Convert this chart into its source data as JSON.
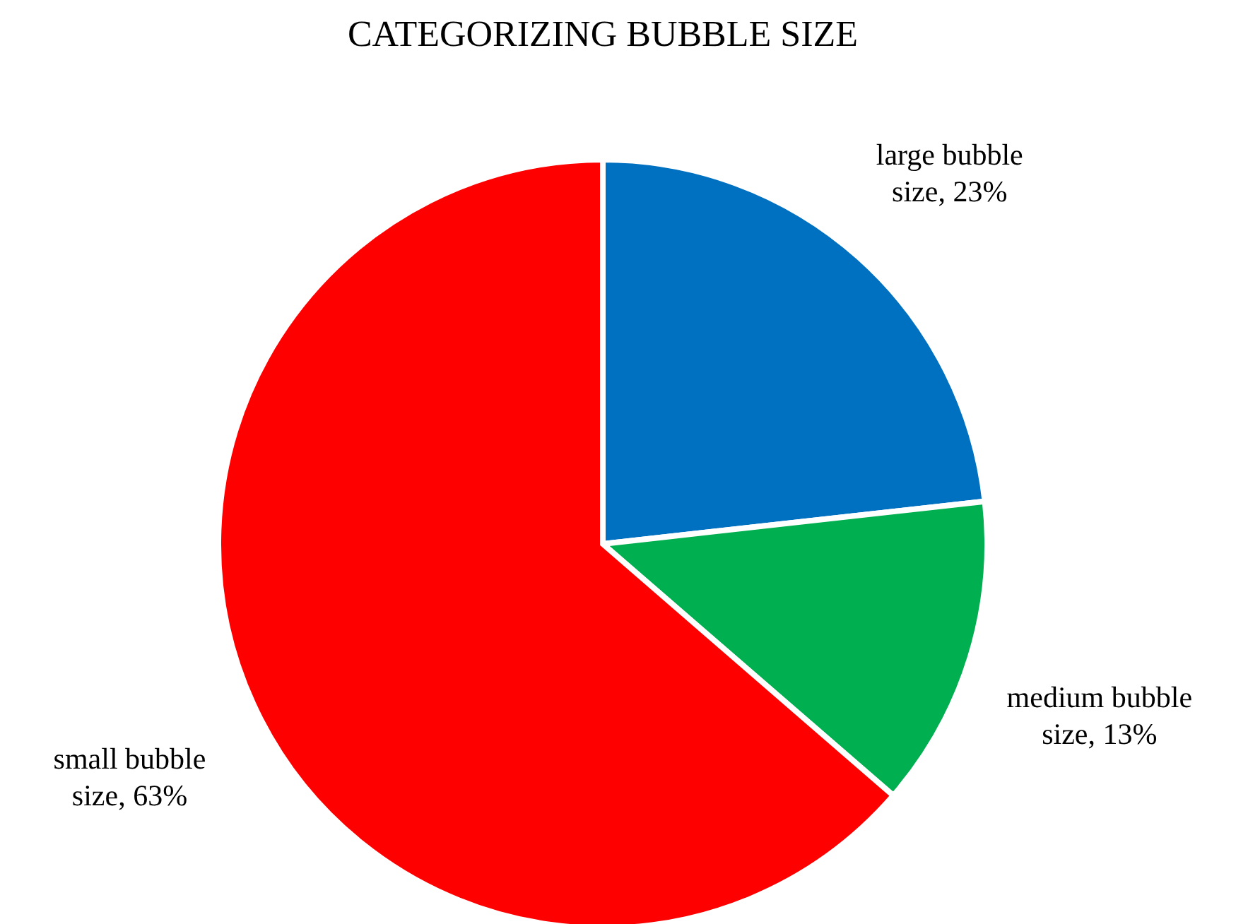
{
  "chart_data": {
    "type": "pie",
    "title": "CATEGORIZING BUBBLE SIZE",
    "categories": [
      "large bubble size",
      "medium bubble size",
      "small bubble size"
    ],
    "values": [
      23,
      13,
      63
    ],
    "value_labels": [
      "23%",
      "13%",
      "63%"
    ],
    "colors": [
      "#0070c0",
      "#00b050",
      "#ff0000"
    ],
    "legend": false
  }
}
